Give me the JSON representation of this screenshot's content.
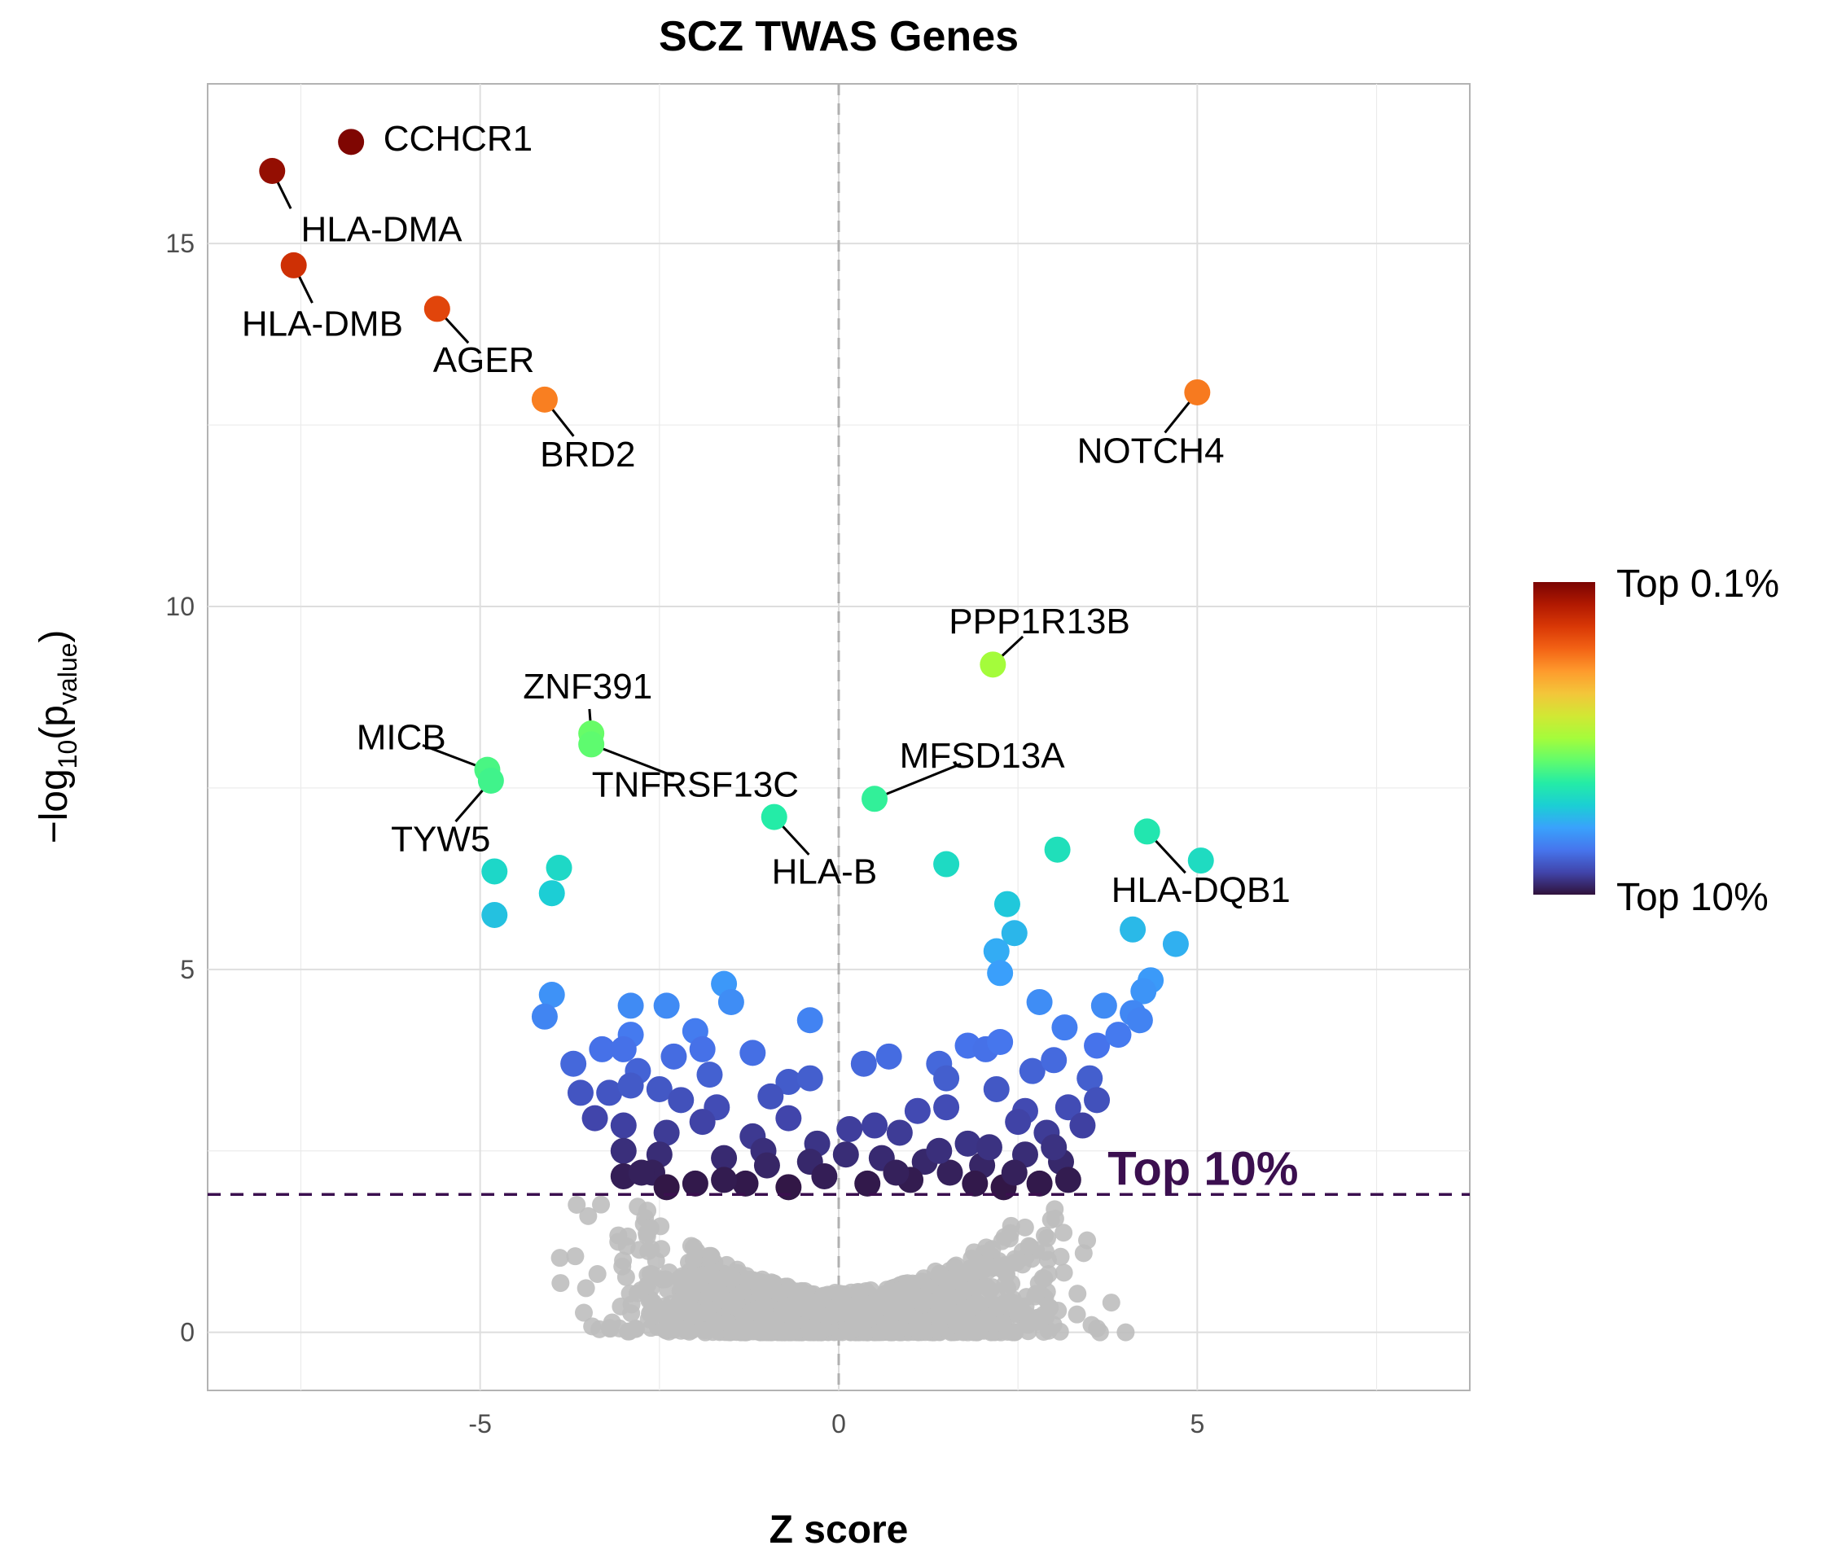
{
  "chart_data": {
    "type": "scatter",
    "title": "SCZ TWAS Genes",
    "xlabel": "Z score",
    "ylabel": {
      "prefix": "−log",
      "sub1": "10",
      "open": "(p",
      "sub2": "value",
      "close": ")"
    },
    "xlim": [
      -8.8,
      8.8
    ],
    "ylim": [
      -0.8,
      17.2
    ],
    "xticks": [
      -5,
      0,
      5
    ],
    "yticks": [
      0,
      5,
      10,
      15
    ],
    "xtick_labels": [
      "-5",
      "0",
      "5"
    ],
    "ytick_labels": [
      "0",
      "5",
      "10",
      "15"
    ],
    "grid": true,
    "threshold": {
      "y": 1.9,
      "label": "Top 10%",
      "color": "#3b0f4f"
    },
    "zero_line": {
      "x": 0,
      "color": "#b0b0b0"
    },
    "legend": {
      "position": "right",
      "top_label": "Top 0.1%",
      "bottom_label": "Top 10%"
    },
    "colors": {
      "nonsignificant": "#bebebe",
      "scale": [
        "#30123b",
        "#4145ab",
        "#4675ed",
        "#39a2fc",
        "#1bcfd4",
        "#24eca6",
        "#61fc6c",
        "#a4fc3b",
        "#d1e834",
        "#f3c63a",
        "#fe9b2d",
        "#f36315",
        "#d93806",
        "#b11901",
        "#7a0402"
      ]
    },
    "labeled_genes": [
      {
        "gene": "CCHCR1",
        "x": -6.8,
        "y": 16.4,
        "lx": -6.35,
        "ly": 16.45,
        "anchor": "start"
      },
      {
        "gene": "HLA-DMA",
        "x": -7.9,
        "y": 16.0,
        "lx": -7.5,
        "ly": 15.2,
        "anchor": "start"
      },
      {
        "gene": "HLA-DMB",
        "x": -7.6,
        "y": 14.7,
        "lx": -7.2,
        "ly": 13.9,
        "anchor": "middle"
      },
      {
        "gene": "AGER",
        "x": -5.6,
        "y": 14.1,
        "lx": -4.95,
        "ly": 13.4,
        "anchor": "middle"
      },
      {
        "gene": "BRD2",
        "x": -4.1,
        "y": 12.85,
        "lx": -3.5,
        "ly": 12.1,
        "anchor": "middle"
      },
      {
        "gene": "NOTCH4",
        "x": 5.0,
        "y": 12.95,
        "lx": 4.35,
        "ly": 12.15,
        "anchor": "middle"
      },
      {
        "gene": "PPP1R13B",
        "x": 2.15,
        "y": 9.2,
        "lx": 2.8,
        "ly": 9.8,
        "anchor": "middle"
      },
      {
        "gene": "ZNF391",
        "x": -3.45,
        "y": 8.25,
        "lx": -3.5,
        "ly": 8.9,
        "anchor": "middle"
      },
      {
        "gene": "TNFRSF13C",
        "x": -3.45,
        "y": 8.1,
        "lx": -2.0,
        "ly": 7.55,
        "anchor": "middle"
      },
      {
        "gene": "MICB",
        "x": -4.9,
        "y": 7.75,
        "lx": -6.1,
        "ly": 8.2,
        "anchor": "middle"
      },
      {
        "gene": "TYW5",
        "x": -4.85,
        "y": 7.6,
        "lx": -5.55,
        "ly": 6.8,
        "anchor": "middle"
      },
      {
        "gene": "MFSD13A",
        "x": 0.5,
        "y": 7.35,
        "lx": 2.0,
        "ly": 7.95,
        "anchor": "middle"
      },
      {
        "gene": "HLA-B",
        "x": -0.9,
        "y": 7.1,
        "lx": -0.2,
        "ly": 6.35,
        "anchor": "middle"
      },
      {
        "gene": "HLA-DQB1",
        "x": 4.3,
        "y": 6.9,
        "lx": 5.05,
        "ly": 6.1,
        "anchor": "middle"
      }
    ],
    "other_significant_points": [
      [
        -4.8,
        6.35
      ],
      [
        -3.9,
        6.4
      ],
      [
        -4.0,
        6.05
      ],
      [
        -4.8,
        5.75
      ],
      [
        1.5,
        6.45
      ],
      [
        3.05,
        6.65
      ],
      [
        5.05,
        6.5
      ],
      [
        2.35,
        5.9
      ],
      [
        2.45,
        5.5
      ],
      [
        2.2,
        5.25
      ],
      [
        4.1,
        5.55
      ],
      [
        4.7,
        5.35
      ],
      [
        2.25,
        4.95
      ],
      [
        -4.0,
        4.65
      ],
      [
        -4.1,
        4.35
      ],
      [
        -1.6,
        4.8
      ],
      [
        -1.5,
        4.55
      ],
      [
        -2.4,
        4.5
      ],
      [
        -2.9,
        4.5
      ],
      [
        -0.4,
        4.3
      ],
      [
        2.8,
        4.55
      ],
      [
        3.7,
        4.5
      ],
      [
        4.35,
        4.85
      ],
      [
        4.25,
        4.7
      ],
      [
        4.1,
        4.4
      ],
      [
        4.2,
        4.3
      ],
      [
        3.15,
        4.2
      ],
      [
        -2.0,
        4.15
      ],
      [
        -2.9,
        4.1
      ],
      [
        -1.9,
        3.9
      ],
      [
        -1.2,
        3.85
      ],
      [
        -3.3,
        3.9
      ],
      [
        -3.7,
        3.7
      ],
      [
        -3.0,
        3.9
      ],
      [
        -2.3,
        3.8
      ],
      [
        -1.8,
        3.55
      ],
      [
        -2.8,
        3.6
      ],
      [
        -0.7,
        3.45
      ],
      [
        -0.4,
        3.5
      ],
      [
        0.35,
        3.7
      ],
      [
        0.7,
        3.8
      ],
      [
        1.4,
        3.7
      ],
      [
        1.8,
        3.95
      ],
      [
        2.05,
        3.9
      ],
      [
        2.25,
        4.0
      ],
      [
        2.7,
        3.6
      ],
      [
        3.0,
        3.75
      ],
      [
        3.6,
        3.95
      ],
      [
        3.9,
        4.1
      ],
      [
        1.5,
        3.5
      ],
      [
        3.5,
        3.5
      ],
      [
        -3.6,
        3.3
      ],
      [
        -3.2,
        3.3
      ],
      [
        -2.9,
        3.4
      ],
      [
        -2.5,
        3.35
      ],
      [
        -2.2,
        3.2
      ],
      [
        -1.7,
        3.1
      ],
      [
        -0.95,
        3.25
      ],
      [
        -0.7,
        2.95
      ],
      [
        1.1,
        3.05
      ],
      [
        1.5,
        3.1
      ],
      [
        2.2,
        3.35
      ],
      [
        2.6,
        3.05
      ],
      [
        3.2,
        3.1
      ],
      [
        3.6,
        3.2
      ],
      [
        -3.4,
        2.95
      ],
      [
        -3.0,
        2.85
      ],
      [
        -2.4,
        2.75
      ],
      [
        -1.9,
        2.9
      ],
      [
        -1.2,
        2.7
      ],
      [
        -0.3,
        2.6
      ],
      [
        0.15,
        2.8
      ],
      [
        0.5,
        2.85
      ],
      [
        0.85,
        2.75
      ],
      [
        1.8,
        2.6
      ],
      [
        2.5,
        2.9
      ],
      [
        2.9,
        2.75
      ],
      [
        3.4,
        2.85
      ],
      [
        -3.0,
        2.5
      ],
      [
        -2.5,
        2.45
      ],
      [
        -1.6,
        2.4
      ],
      [
        -1.05,
        2.5
      ],
      [
        -0.4,
        2.35
      ],
      [
        0.6,
        2.4
      ],
      [
        1.2,
        2.35
      ],
      [
        2.0,
        2.3
      ],
      [
        2.6,
        2.45
      ],
      [
        3.1,
        2.35
      ],
      [
        -3.0,
        2.15
      ],
      [
        -2.6,
        2.2
      ],
      [
        -2.0,
        2.05
      ],
      [
        -1.3,
        2.05
      ],
      [
        -0.7,
        2.0
      ],
      [
        0.4,
        2.05
      ],
      [
        1.0,
        2.1
      ],
      [
        1.55,
        2.2
      ],
      [
        2.3,
        2.0
      ],
      [
        2.8,
        2.05
      ],
      [
        3.2,
        2.1
      ],
      [
        -2.4,
        2.0
      ],
      [
        -1.6,
        2.1
      ],
      [
        -0.2,
        2.15
      ],
      [
        0.8,
        2.2
      ],
      [
        1.9,
        2.05
      ],
      [
        2.45,
        2.2
      ],
      [
        -1.0,
        2.3
      ],
      [
        0.1,
        2.45
      ],
      [
        1.4,
        2.5
      ],
      [
        2.1,
        2.55
      ],
      [
        -2.75,
        2.2
      ],
      [
        3.0,
        2.55
      ]
    ]
  }
}
